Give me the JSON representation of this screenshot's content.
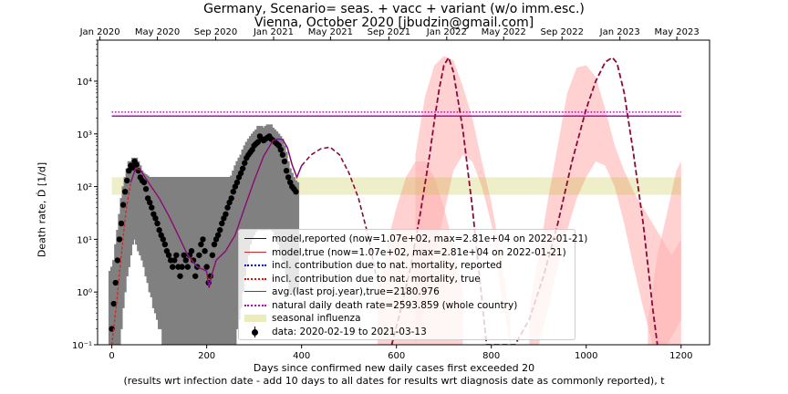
{
  "title_line1": "Germany, Scenario= seas. + vacc + variant (w/o imm.esc.)",
  "title_line2": "Vienna, October 2020 [jbudzin@gmail.com]",
  "xlabel_line1": "Days since confirmed new daily cases first exceeded 20",
  "xlabel_line2": "(results wrt infection date - add 10 days to all dates for results wrt diagnosis date as commonly reported), t",
  "ylabel": "Death rate, Ḋ [1/d]",
  "colors": {
    "model_reported": "#0000ff",
    "model_true": "#d62728",
    "nat_reported_dotted": "#0000ff",
    "nat_true_dotted": "#ff0000",
    "avg_last_year": "#bf00bf",
    "natural_rate": "#bf00bf",
    "seasonal_flu": "#bcbd22",
    "uncertainty_band": "#ffb3b3",
    "data": "#000000",
    "data_error": "#808080"
  },
  "chart_data": {
    "type": "line",
    "yscale": "log",
    "xlim": [
      -30,
      1260
    ],
    "ylim": [
      0.1,
      60000
    ],
    "xticks": [
      0,
      200,
      400,
      600,
      800,
      1000,
      1200
    ],
    "yticks": [
      {
        "value": 0.1,
        "label": "10⁻¹"
      },
      {
        "value": 1,
        "label": "10⁰"
      },
      {
        "value": 10,
        "label": "10¹"
      },
      {
        "value": 100,
        "label": "10²"
      },
      {
        "value": 1000,
        "label": "10³"
      },
      {
        "value": 10000,
        "label": "10⁴"
      }
    ],
    "top_axis": {
      "ticks": [
        {
          "x": -25,
          "label": "Jan 2020"
        },
        {
          "x": 96,
          "label": "May 2020"
        },
        {
          "x": 219,
          "label": "Sep 2020"
        },
        {
          "x": 341,
          "label": "Jan 2021"
        },
        {
          "x": 461,
          "label": "May 2021"
        },
        {
          "x": 584,
          "label": "Sep 2021"
        },
        {
          "x": 706,
          "label": "Jan 2022"
        },
        {
          "x": 826,
          "label": "May 2022"
        },
        {
          "x": 949,
          "label": "Sep 2022"
        },
        {
          "x": 1071,
          "label": "Jan 2023"
        },
        {
          "x": 1191,
          "label": "May 2023"
        }
      ]
    },
    "horizontal_lines": {
      "avg_last_year": 2180.976,
      "natural_rate": 2593.859
    },
    "seasonal_flu_band": {
      "x": [
        0,
        1200
      ],
      "y": [
        70,
        150
      ]
    },
    "model_true": {
      "x": [
        0,
        10,
        20,
        30,
        40,
        50,
        60,
        70,
        80,
        100,
        120,
        140,
        160,
        180,
        200,
        205,
        210,
        220,
        240,
        260,
        280,
        300,
        320,
        340,
        350,
        360,
        370,
        380,
        390,
        400,
        420,
        440,
        460,
        480,
        500,
        520,
        540,
        560
      ],
      "y": [
        0.1,
        0.6,
        5,
        35,
        120,
        220,
        210,
        150,
        110,
        60,
        28,
        12,
        5,
        3,
        2.5,
        1.2,
        2,
        4,
        6,
        12,
        40,
        130,
        380,
        750,
        800,
        780,
        550,
        260,
        150,
        250,
        400,
        520,
        560,
        400,
        180,
        60,
        12,
        1.5
      ]
    },
    "model_late": {
      "x": [
        590,
        610,
        630,
        650,
        670,
        680,
        690,
        700,
        710,
        720,
        740,
        760,
        775,
        790,
        850,
        880,
        910,
        940,
        970,
        1000,
        1020,
        1040,
        1055,
        1065,
        1080,
        1100,
        1120,
        1140,
        1150
      ],
      "y": [
        0.1,
        0.5,
        3,
        30,
        400,
        1800,
        7000,
        20000,
        28000,
        15000,
        1200,
        40,
        2,
        0.1,
        0.1,
        0.3,
        2,
        20,
        300,
        3000,
        10000,
        23000,
        28000,
        22000,
        6000,
        400,
        20,
        0.5,
        0.1
      ]
    },
    "band_segments": [
      {
        "x": [
          640,
          660,
          680,
          700,
          720,
          740,
          760,
          780,
          800,
          820,
          840
        ],
        "upper": [
          400,
          5000,
          20000,
          30000,
          25000,
          8000,
          2000,
          300,
          50,
          5,
          0.3
        ],
        "lower": [
          0.1,
          0.5,
          5,
          30,
          200,
          400,
          300,
          100,
          20,
          1,
          0.1
        ]
      },
      {
        "x": [
          560,
          580,
          600,
          620,
          640,
          660,
          680,
          700,
          720,
          740
        ],
        "upper": [
          1,
          8,
          40,
          150,
          300,
          300,
          150,
          40,
          8,
          1
        ],
        "lower": [
          0.1,
          0.1,
          0.1,
          0.1,
          0.1,
          0.1,
          0.1,
          0.1,
          0.1,
          0.1
        ]
      },
      {
        "x": [
          880,
          900,
          920,
          940,
          960,
          980,
          1000,
          1020,
          1040,
          1060,
          1080,
          1100,
          1120,
          1140,
          1160,
          1180,
          1200
        ],
        "upper": [
          0.5,
          5,
          60,
          600,
          6000,
          18000,
          20000,
          12000,
          3000,
          600,
          200,
          80,
          40,
          20,
          10,
          5,
          10
        ],
        "lower": [
          0.1,
          0.1,
          0.5,
          3,
          15,
          60,
          150,
          300,
          250,
          100,
          20,
          3,
          0.5,
          0.1,
          0.1,
          0.1,
          0.1
        ]
      },
      {
        "x": [
          1130,
          1150,
          1170,
          1190,
          1200
        ],
        "upper": [
          0.3,
          5,
          30,
          200,
          300
        ],
        "lower": [
          0.1,
          0.1,
          0.1,
          0.2,
          0.3
        ]
      }
    ],
    "data_points": {
      "x": [
        0,
        4,
        8,
        12,
        16,
        20,
        24,
        28,
        32,
        36,
        40,
        44,
        48,
        52,
        56,
        60,
        64,
        68,
        72,
        76,
        80,
        84,
        88,
        92,
        96,
        100,
        104,
        108,
        112,
        116,
        120,
        124,
        128,
        132,
        136,
        140,
        144,
        148,
        152,
        156,
        160,
        164,
        168,
        172,
        176,
        180,
        184,
        188,
        192,
        196,
        200,
        204,
        208,
        212,
        216,
        220,
        224,
        228,
        232,
        236,
        240,
        244,
        248,
        252,
        256,
        260,
        264,
        268,
        272,
        276,
        280,
        284,
        288,
        292,
        296,
        300,
        304,
        308,
        312,
        316,
        320,
        324,
        328,
        332,
        336,
        340,
        344,
        348,
        352,
        356,
        360,
        364,
        368,
        372,
        376,
        380,
        384,
        388
      ],
      "y": [
        0.2,
        0.6,
        1.5,
        4,
        10,
        20,
        45,
        80,
        130,
        200,
        250,
        230,
        300,
        260,
        200,
        150,
        130,
        120,
        90,
        60,
        50,
        40,
        30,
        25,
        20,
        15,
        12,
        10,
        8,
        6,
        5,
        4,
        3,
        4,
        5,
        3,
        2,
        3,
        5,
        4,
        3,
        5,
        6,
        4,
        2,
        3,
        5,
        8,
        10,
        6,
        3,
        1.5,
        2,
        5,
        8,
        10,
        12,
        15,
        20,
        25,
        30,
        40,
        50,
        60,
        80,
        100,
        120,
        150,
        180,
        220,
        280,
        350,
        400,
        450,
        500,
        600,
        650,
        700,
        900,
        800,
        750,
        800,
        850,
        900,
        800,
        750,
        700,
        650,
        600,
        500,
        400,
        300,
        200,
        150,
        120,
        100,
        90,
        80
      ],
      "err_low": [
        0.1,
        0.1,
        0.1,
        0.1,
        0.2,
        0.5,
        1,
        2,
        3,
        5,
        8,
        10,
        12,
        10,
        8,
        6,
        5,
        4,
        3,
        2,
        1.5,
        1,
        0.8,
        0.5,
        0.4,
        0.3,
        0.2,
        0.2,
        0.1,
        0.1,
        0.1,
        0.1,
        0.1,
        0.1,
        0.1,
        0.1,
        0.1,
        0.1,
        0.1,
        0.1,
        0.1,
        0.1,
        0.1,
        0.1,
        0.1,
        0.1,
        0.1,
        0.1,
        0.1,
        0.1,
        0.1,
        0.1,
        0.1,
        0.1,
        0.1,
        0.1,
        0.1,
        0.1,
        0.1,
        0.1,
        0.1,
        0.1,
        0.1,
        0.1,
        0.1,
        0.2,
        0.3,
        0.5,
        1,
        2,
        3,
        5,
        8,
        10,
        12,
        14,
        15,
        15,
        18,
        16,
        15,
        15,
        16,
        18,
        16,
        15,
        14,
        12,
        10,
        8,
        6,
        4,
        3,
        2,
        1.5,
        1,
        1,
        1
      ],
      "err_high": [
        2.5,
        3,
        4,
        8,
        15,
        30,
        60,
        100,
        150,
        220,
        300,
        280,
        350,
        300,
        250,
        200,
        180,
        170,
        160,
        150,
        150,
        150,
        150,
        150,
        150,
        150,
        150,
        150,
        150,
        150,
        150,
        150,
        150,
        150,
        150,
        150,
        150,
        150,
        150,
        150,
        150,
        150,
        150,
        150,
        150,
        150,
        150,
        150,
        150,
        150,
        150,
        150,
        150,
        150,
        150,
        150,
        150,
        150,
        150,
        150,
        150,
        150,
        150,
        150,
        160,
        200,
        250,
        300,
        350,
        400,
        500,
        600,
        700,
        800,
        900,
        1000,
        1100,
        1200,
        1400,
        1300,
        1200,
        1300,
        1400,
        1500,
        1300,
        1200,
        1100,
        1000,
        900,
        800,
        600,
        450,
        300,
        220,
        180,
        150,
        130,
        120
      ]
    },
    "legend": [
      {
        "key": "model_reported",
        "style": "solid",
        "label": "model,reported (now=1.07e+02, max=2.81e+04 on 2022-01-21)"
      },
      {
        "key": "model_true",
        "style": "solid",
        "label": "model,true (now=1.07e+02, max=2.81e+04 on 2022-01-21)"
      },
      {
        "key": "nat_reported_dotted",
        "style": "dotted",
        "label": "incl. contribution due to nat. mortality, reported"
      },
      {
        "key": "nat_true_dotted",
        "style": "dotted",
        "label": "incl. contribution due to nat. mortality, true"
      },
      {
        "key": "avg_last_year",
        "style": "solid",
        "label": "avg.(last proj.year),true=2180.976"
      },
      {
        "key": "natural_rate",
        "style": "dotted",
        "label": "natural daily death rate=2593.859 (whole country)"
      },
      {
        "key": "seasonal_flu",
        "style": "patch",
        "label": "seasonal influenza"
      },
      {
        "key": "data",
        "style": "errorbar",
        "label": "data: 2020-02-19 to 2021-03-13"
      }
    ]
  }
}
